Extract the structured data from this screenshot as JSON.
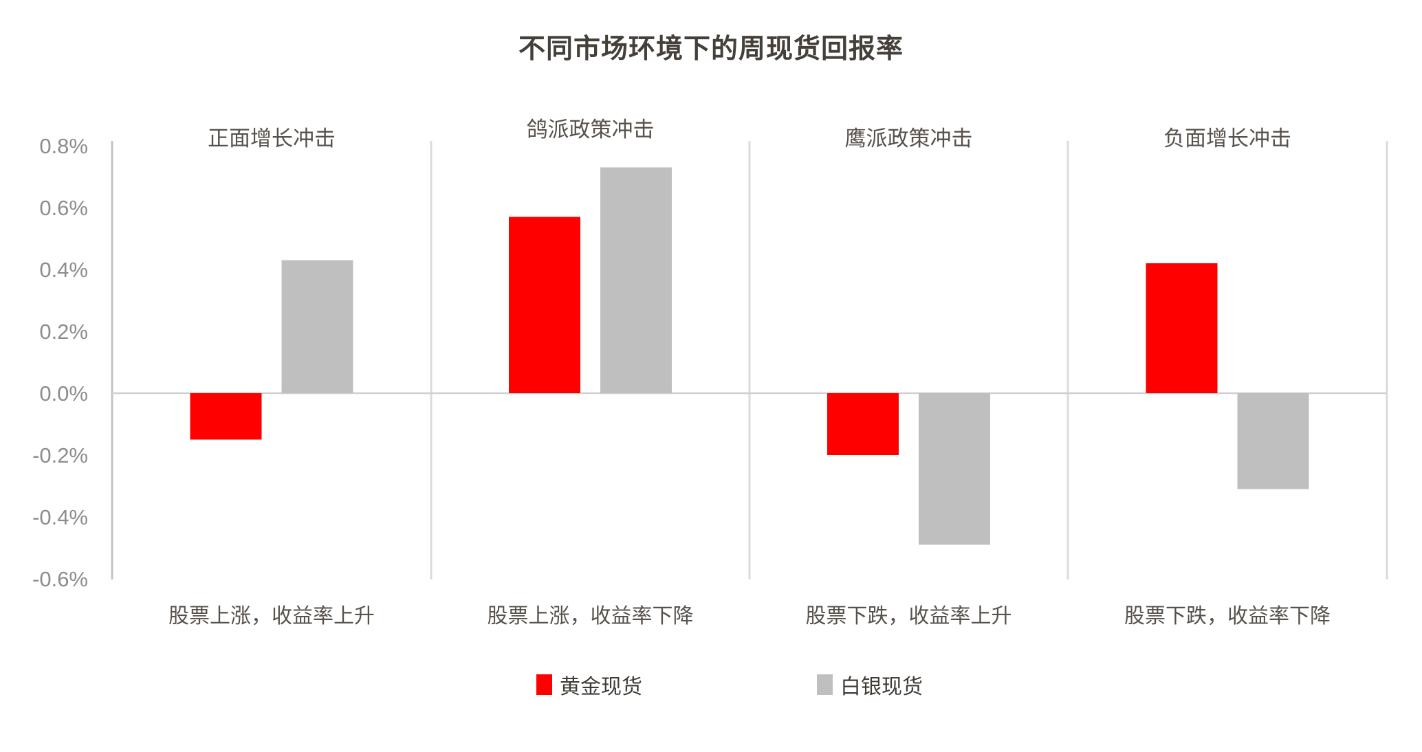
{
  "page": {
    "title": "不同市场环境下的周现货回报率"
  },
  "chart_data": {
    "type": "bar",
    "title": "不同市场环境下的周现货回报率",
    "xlabel": "",
    "ylabel": "",
    "unit": "%",
    "ylim": [
      -0.6,
      0.8
    ],
    "y_tick_step": 0.2,
    "y_ticks": [
      "0.8%",
      "0.6%",
      "0.4%",
      "0.2%",
      "0.0%",
      "-0.2%",
      "-0.4%",
      "-0.6%"
    ],
    "grid": "zero line only, vertical separators between panels",
    "legend_position": "bottom-center",
    "legend": [
      {
        "name": "黄金现货",
        "color": "#FF0000"
      },
      {
        "name": "白银现货",
        "color": "#BFBFBF"
      }
    ],
    "categories": [
      "正面增长冲击",
      "鸽派政策冲击",
      "鹰派政策冲击",
      "负面增长冲击"
    ],
    "panels": [
      {
        "title": "正面增长冲击",
        "subtitle": "股票上涨，收益率上升",
        "gold": -0.15,
        "silver": 0.43
      },
      {
        "title": "鸽派政策冲击",
        "subtitle": "股票上涨，收益率下降",
        "gold": 0.57,
        "silver": 0.73
      },
      {
        "title": "鹰派政策冲击",
        "subtitle": "股票下跌，收益率上升",
        "gold": -0.2,
        "silver": -0.49
      },
      {
        "title": "负面增长冲击",
        "subtitle": "股票下跌，收益率下降",
        "gold": 0.42,
        "silver": -0.31
      }
    ],
    "series": [
      {
        "name": "黄金现货",
        "values": [
          -0.15,
          0.57,
          -0.2,
          0.42
        ]
      },
      {
        "name": "白银现货",
        "values": [
          0.43,
          0.73,
          -0.49,
          -0.31
        ]
      }
    ]
  },
  "colors": {
    "gold_bar": "#FF0000",
    "silver_bar": "#BFBFBF",
    "axis_line": "#C4C4C4",
    "separator_line": "#DBDBDB",
    "zero_line": "#D0D0D0",
    "tick_text": "#8D8D8D",
    "title_text": "#453F39",
    "label_text": "#57514B",
    "background": "#FFFFFF"
  }
}
